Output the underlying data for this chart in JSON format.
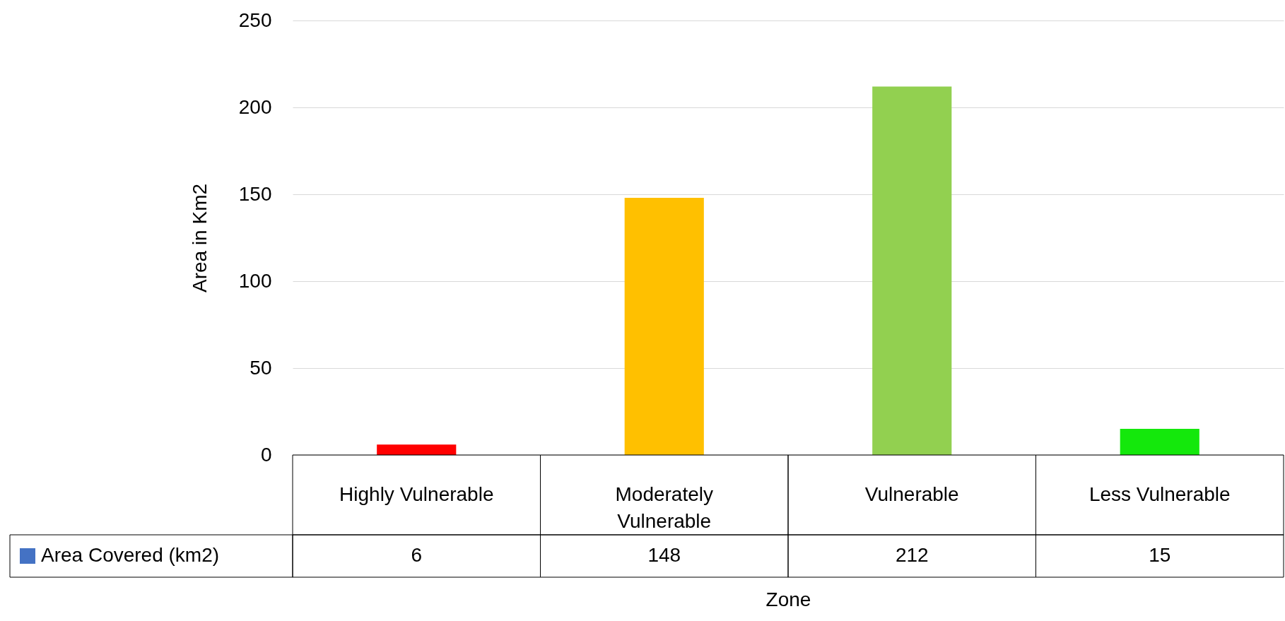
{
  "chart_data": {
    "type": "bar",
    "ylabel": "Area in Km2",
    "xlabel": "Zone",
    "categories": [
      "Highly Vulnerable",
      "Moderately Vulnerable",
      "Vulnerable",
      "Less Vulnerable"
    ],
    "series": [
      {
        "name": "Area Covered (km2)",
        "color": "#4472c4",
        "colors": [
          "#ff0000",
          "#ffc000",
          "#92d050",
          "#14e80c"
        ],
        "values": [
          6,
          148,
          212,
          15
        ]
      }
    ],
    "ylim": [
      0,
      250
    ],
    "yticks": [
      0,
      50,
      100,
      150,
      200,
      250
    ],
    "grid": "y",
    "data_labels": true,
    "legend": "bottom left"
  }
}
